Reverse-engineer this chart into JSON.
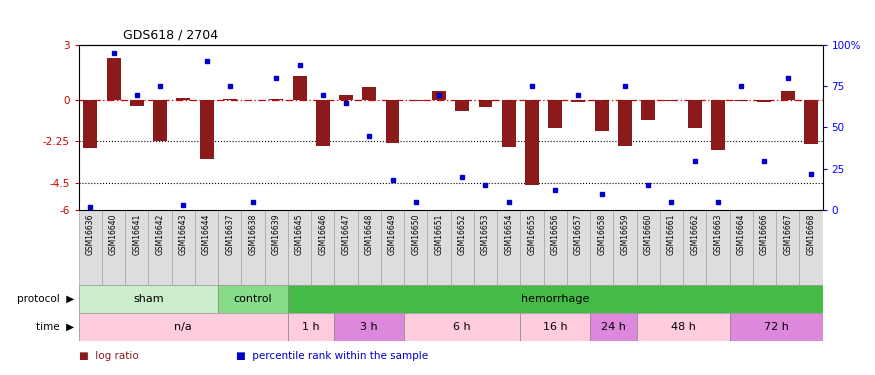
{
  "title": "GDS618 / 2704",
  "samples": [
    "GSM16636",
    "GSM16640",
    "GSM16641",
    "GSM16642",
    "GSM16643",
    "GSM16644",
    "GSM16637",
    "GSM16638",
    "GSM16639",
    "GSM16645",
    "GSM16646",
    "GSM16647",
    "GSM16648",
    "GSM16649",
    "GSM16650",
    "GSM16651",
    "GSM16652",
    "GSM16653",
    "GSM16654",
    "GSM16655",
    "GSM16656",
    "GSM16657",
    "GSM16658",
    "GSM16659",
    "GSM16660",
    "GSM16661",
    "GSM16662",
    "GSM16663",
    "GSM16664",
    "GSM16666",
    "GSM16667",
    "GSM16668"
  ],
  "log_ratio": [
    -2.6,
    2.3,
    -0.3,
    -2.25,
    0.1,
    -3.2,
    0.08,
    0.0,
    0.08,
    1.3,
    -2.5,
    0.3,
    0.7,
    -2.35,
    -0.05,
    0.5,
    -0.6,
    -0.4,
    -2.55,
    -4.65,
    -1.5,
    -0.1,
    -1.7,
    -2.5,
    -1.1,
    -0.05,
    -1.5,
    -2.7,
    -0.08,
    -0.1,
    0.5,
    -2.4
  ],
  "percentile": [
    2,
    95,
    70,
    75,
    3,
    90,
    75,
    5,
    80,
    88,
    70,
    65,
    45,
    18,
    5,
    70,
    20,
    15,
    5,
    75,
    12,
    70,
    10,
    75,
    15,
    5,
    30,
    5,
    75,
    30,
    80,
    22
  ],
  "ylim_left": [
    -6,
    3
  ],
  "ylim_right": [
    0,
    100
  ],
  "yticks_left": [
    3,
    0,
    -2.25,
    -4.5,
    -6
  ],
  "yticks_right": [
    100,
    75,
    50,
    25,
    0
  ],
  "bar_color": "#8B1A1A",
  "dot_color": "#0000CC",
  "protocol_groups": [
    {
      "label": "sham",
      "start": 0,
      "end": 5,
      "color": "#CCEECC"
    },
    {
      "label": "control",
      "start": 6,
      "end": 8,
      "color": "#88DD88"
    },
    {
      "label": "hemorrhage",
      "start": 9,
      "end": 31,
      "color": "#44BB44"
    }
  ],
  "time_groups": [
    {
      "label": "n/a",
      "start": 0,
      "end": 8,
      "color": "#FFCCDD"
    },
    {
      "label": "1 h",
      "start": 9,
      "end": 10,
      "color": "#FFCCDD"
    },
    {
      "label": "3 h",
      "start": 11,
      "end": 13,
      "color": "#DD88DD"
    },
    {
      "label": "6 h",
      "start": 14,
      "end": 18,
      "color": "#FFCCDD"
    },
    {
      "label": "16 h",
      "start": 19,
      "end": 21,
      "color": "#FFCCDD"
    },
    {
      "label": "24 h",
      "start": 22,
      "end": 23,
      "color": "#DD88DD"
    },
    {
      "label": "48 h",
      "start": 24,
      "end": 27,
      "color": "#FFCCDD"
    },
    {
      "label": "72 h",
      "start": 28,
      "end": 31,
      "color": "#DD88DD"
    }
  ],
  "fig_width": 8.75,
  "fig_height": 3.75,
  "dpi": 100
}
